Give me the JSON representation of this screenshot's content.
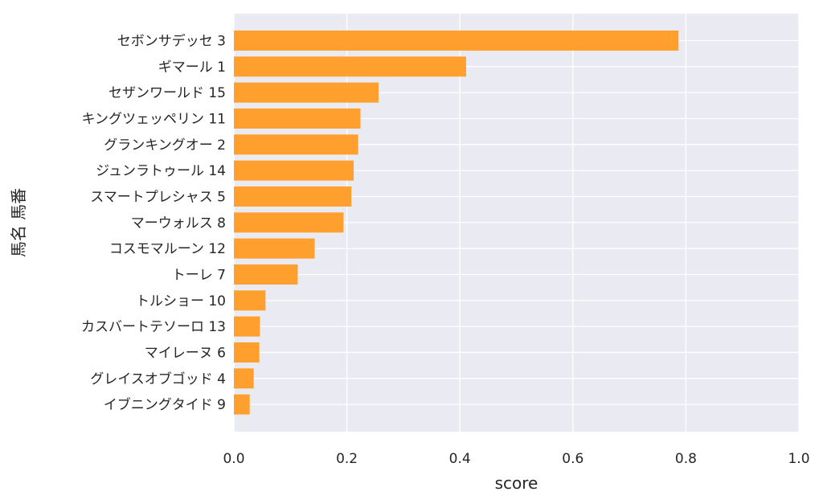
{
  "chart_data": {
    "type": "bar",
    "orientation": "horizontal",
    "xlabel": "score",
    "ylabel": "馬名 馬番",
    "xlim": [
      0.0,
      1.0
    ],
    "xticks": [
      "0.0",
      "0.2",
      "0.4",
      "0.6",
      "0.8",
      "1.0"
    ],
    "grid": true,
    "bar_color": "#ff9f2e",
    "background_color": "#eaeaf2",
    "categories": [
      "セボンサデッセ 3",
      "ギマール 1",
      "セザンワールド 15",
      "キングツェッペリン 11",
      "グランキングオー 2",
      "ジュンラトゥール 14",
      "スマートプレシャス 5",
      "マーウォルス 8",
      "コスモマルーン 12",
      "トーレ 7",
      "トルショー 10",
      "カスバートテソーロ 13",
      "マイレーヌ 6",
      "グレイスオブゴッド 4",
      "イブニングタイド 9"
    ],
    "values": [
      0.787,
      0.411,
      0.256,
      0.224,
      0.22,
      0.212,
      0.208,
      0.194,
      0.143,
      0.113,
      0.056,
      0.046,
      0.045,
      0.035,
      0.028
    ]
  }
}
